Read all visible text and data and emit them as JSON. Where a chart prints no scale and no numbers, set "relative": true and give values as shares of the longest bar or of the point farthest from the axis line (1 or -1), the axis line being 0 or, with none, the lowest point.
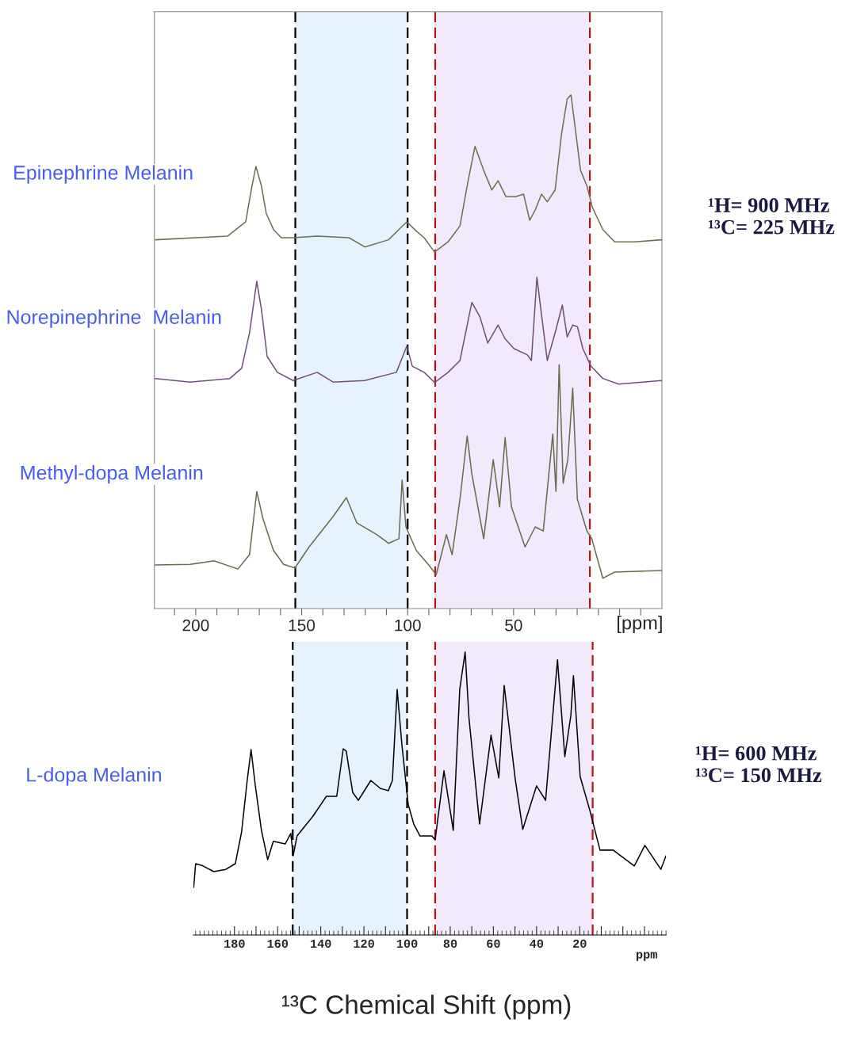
{
  "chart_data": [
    {
      "type": "line",
      "relative": true,
      "xlabel": "[ppm]",
      "xlim": [
        219.5,
        -20
      ],
      "xticks": [
        {
          "value": 210,
          "label": null
        },
        200,
        {
          "value": 190,
          "label": null
        },
        {
          "value": 180,
          "label": null
        },
        {
          "value": 170,
          "label": null
        },
        {
          "value": 160,
          "label": null
        },
        150,
        {
          "value": 140,
          "label": null
        },
        {
          "value": 130,
          "label": null
        },
        {
          "value": 120,
          "label": null
        },
        {
          "value": 110,
          "label": null
        },
        100,
        {
          "value": 90,
          "label": null
        },
        {
          "value": 80,
          "label": null
        },
        {
          "value": 70,
          "label": null
        },
        {
          "value": 60,
          "label": null
        },
        50,
        {
          "value": 40,
          "label": null
        },
        {
          "value": 30,
          "label": null
        },
        {
          "value": 20,
          "label": null
        },
        {
          "value": 10,
          "label": null
        },
        {
          "value": 0,
          "label": null
        },
        {
          "value": -10,
          "label": null
        }
      ],
      "grid": false,
      "bands": [
        {
          "axis": "x",
          "from": 153,
          "to": 100,
          "color": "#e6f2fd"
        },
        {
          "axis": "x",
          "from": 87,
          "to": 14,
          "color": "#f2e9fc"
        }
      ],
      "ref_lines": [
        {
          "axis": "x",
          "value": 153,
          "color": "#000000",
          "line_style": "dashed"
        },
        {
          "axis": "x",
          "value": 100,
          "color": "#000000",
          "line_style": "dashed"
        },
        {
          "axis": "x",
          "value": 87,
          "color": "#b01818",
          "line_style": "dashed"
        },
        {
          "axis": "x",
          "value": 14,
          "color": "#b01818",
          "line_style": "dashed"
        }
      ],
      "annotations": [
        "¹H= 900 MHz\n¹³C= 225 MHz"
      ],
      "series": [
        {
          "name": "Epinephrine Melanin",
          "color": "#6e6e55",
          "x": [
            219,
            200,
            185,
            176.4,
            173.8,
            171.6,
            169,
            166.7,
            163.3,
            159.6,
            153.9,
            142.7,
            127.7,
            120.2,
            109,
            100.4,
            95.9,
            92.2,
            87.3,
            80.9,
            75.3,
            71.6,
            68.2,
            64.1,
            60.3,
            57.3,
            53.6,
            49.1,
            45.3,
            42.4,
            39.8,
            36.8,
            34.1,
            30.4,
            27.4,
            24.7,
            22.9,
            21,
            18.4,
            15.4,
            12.8,
            7.9,
            2.3,
            -7.1,
            -19.8
          ],
          "values": [
            0.718,
            0.722,
            0.725,
            0.753,
            0.815,
            0.861,
            0.823,
            0.769,
            0.738,
            0.722,
            0.722,
            0.725,
            0.722,
            0.704,
            0.718,
            0.753,
            0.735,
            0.722,
            0.694,
            0.714,
            0.745,
            0.83,
            0.9,
            0.853,
            0.815,
            0.833,
            0.802,
            0.802,
            0.807,
            0.756,
            0.776,
            0.807,
            0.792,
            0.815,
            0.923,
            0.992,
            1.0,
            0.938,
            0.853,
            0.823,
            0.781,
            0.738,
            0.714,
            0.714,
            0.718
          ]
        },
        {
          "name": "Norepinephrine  Melanin",
          "color": "#6f4f7a",
          "x": [
            219.1,
            202.6,
            183.9,
            178.3,
            174.6,
            171.2,
            169,
            166.3,
            161.5,
            154,
            142.7,
            135.2,
            120.2,
            105.3,
            100.4,
            97.8,
            92.2,
            87.3,
            80.9,
            75.3,
            69.7,
            65.9,
            62.2,
            57.3,
            54,
            49.8,
            43.5,
            41.6,
            39,
            36.7,
            34.1,
            30.4,
            27,
            24.7,
            22.1,
            19.9,
            17.3,
            13.5,
            7.9,
            0.4,
            -19.8
          ],
          "values": [
            0.448,
            0.441,
            0.448,
            0.468,
            0.537,
            0.637,
            0.583,
            0.491,
            0.46,
            0.444,
            0.46,
            0.441,
            0.444,
            0.46,
            0.511,
            0.472,
            0.46,
            0.44,
            0.46,
            0.483,
            0.596,
            0.568,
            0.517,
            0.552,
            0.525,
            0.506,
            0.494,
            0.483,
            0.645,
            0.568,
            0.483,
            0.537,
            0.591,
            0.529,
            0.552,
            0.549,
            0.506,
            0.472,
            0.448,
            0.437,
            0.444
          ]
        },
        {
          "name": "Methyl-dopa Melanin",
          "color": "#6a6a50",
          "x": [
            219.1,
            202.6,
            191.4,
            180.1,
            174.6,
            171.2,
            168.2,
            163.3,
            158.5,
            153.2,
            146.5,
            135.2,
            128.9,
            124,
            114.6,
            109,
            104.1,
            102.6,
            100.8,
            95.9,
            90.3,
            86.5,
            81.7,
            79,
            75.3,
            73.8,
            71.9,
            69.7,
            64.1,
            59.6,
            56.6,
            54,
            51,
            44.6,
            39.8,
            36,
            31.5,
            30,
            28.5,
            26.6,
            24.4,
            22.1,
            19.9,
            15.4,
            13.1,
            7.9,
            2.3,
            -19.8
          ],
          "values": [
            0.085,
            0.086,
            0.093,
            0.077,
            0.105,
            0.228,
            0.174,
            0.113,
            0.086,
            0.079,
            0.12,
            0.179,
            0.216,
            0.167,
            0.144,
            0.127,
            0.136,
            0.25,
            0.159,
            0.113,
            0.086,
            0.066,
            0.144,
            0.105,
            0.213,
            0.267,
            0.336,
            0.262,
            0.136,
            0.29,
            0.198,
            0.333,
            0.198,
            0.12,
            0.159,
            0.151,
            0.34,
            0.228,
            0.475,
            0.244,
            0.29,
            0.429,
            0.213,
            0.151,
            0.136,
            0.059,
            0.071,
            0.074
          ]
        }
      ]
    },
    {
      "type": "line",
      "relative": true,
      "xlabel": "ppm",
      "xlim": [
        199,
        -20
      ],
      "xticks": [
        180,
        {
          "value": 170,
          "label": null
        },
        160,
        {
          "value": 150,
          "label": null
        },
        140,
        {
          "value": 130,
          "label": null
        },
        120,
        {
          "value": 110,
          "label": null
        },
        100,
        {
          "value": 90,
          "label": null
        },
        80,
        {
          "value": 70,
          "label": null
        },
        60,
        {
          "value": 50,
          "label": null
        },
        40,
        {
          "value": 30,
          "label": null
        },
        20,
        {
          "value": 10,
          "label": null
        },
        {
          "value": 0,
          "label": null
        },
        {
          "value": -10,
          "label": null
        }
      ],
      "grid": false,
      "bands": [
        {
          "axis": "x",
          "from": 153,
          "to": 100,
          "color": "#e6f2fd"
        },
        {
          "axis": "x",
          "from": 87,
          "to": 14,
          "color": "#f2e9fc"
        }
      ],
      "ref_lines": [
        {
          "axis": "x",
          "value": 153,
          "color": "#000000",
          "line_style": "dashed"
        },
        {
          "axis": "x",
          "value": 100,
          "color": "#000000",
          "line_style": "dashed"
        },
        {
          "axis": "x",
          "value": 87,
          "color": "#b01818",
          "line_style": "dashed"
        },
        {
          "axis": "x",
          "value": 14,
          "color": "#b01818",
          "line_style": "dashed"
        }
      ],
      "annotations": [
        "¹H= 600 MHz\n¹³C= 150 MHz",
        "¹³C Chemical Shift (ppm)"
      ],
      "series": [
        {
          "name": "L-dopa Melanin",
          "color": "#000000",
          "x": [
            198.9,
            198,
            195.1,
            189.6,
            184,
            179.6,
            176.7,
            174.1,
            172.3,
            170.4,
            167.5,
            164.6,
            162,
            156.5,
            153.9,
            152.8,
            151,
            143.6,
            137.4,
            132.6,
            129.6,
            128.2,
            125.2,
            122.6,
            116.8,
            112.4,
            108.7,
            106.8,
            104.6,
            102.4,
            99.5,
            96.9,
            94,
            88.5,
            87,
            82.9,
            78.6,
            75.6,
            73.1,
            71.3,
            66.4,
            61.1,
            57.5,
            55,
            49.9,
            46.4,
            40,
            35.8,
            30.3,
            26.9,
            24.1,
            22.9,
            19.8,
            15.3,
            10.6,
            4.5,
            -5.3,
            -10.2,
            -17.6,
            -20
          ],
          "values": [
            0.168,
            0.252,
            0.246,
            0.224,
            0.232,
            0.252,
            0.364,
            0.546,
            0.655,
            0.532,
            0.37,
            0.266,
            0.331,
            0.322,
            0.359,
            0.28,
            0.35,
            0.42,
            0.49,
            0.49,
            0.658,
            0.65,
            0.504,
            0.476,
            0.546,
            0.518,
            0.51,
            0.546,
            0.868,
            0.672,
            0.462,
            0.392,
            0.35,
            0.35,
            0.336,
            0.58,
            0.37,
            0.868,
            1.0,
            0.765,
            0.392,
            0.706,
            0.555,
            0.882,
            0.552,
            0.373,
            0.527,
            0.476,
            0.972,
            0.63,
            0.776,
            0.916,
            0.56,
            0.44,
            0.3,
            0.3,
            0.244,
            0.317,
            0.232,
            0.28
          ]
        }
      ]
    }
  ]
}
